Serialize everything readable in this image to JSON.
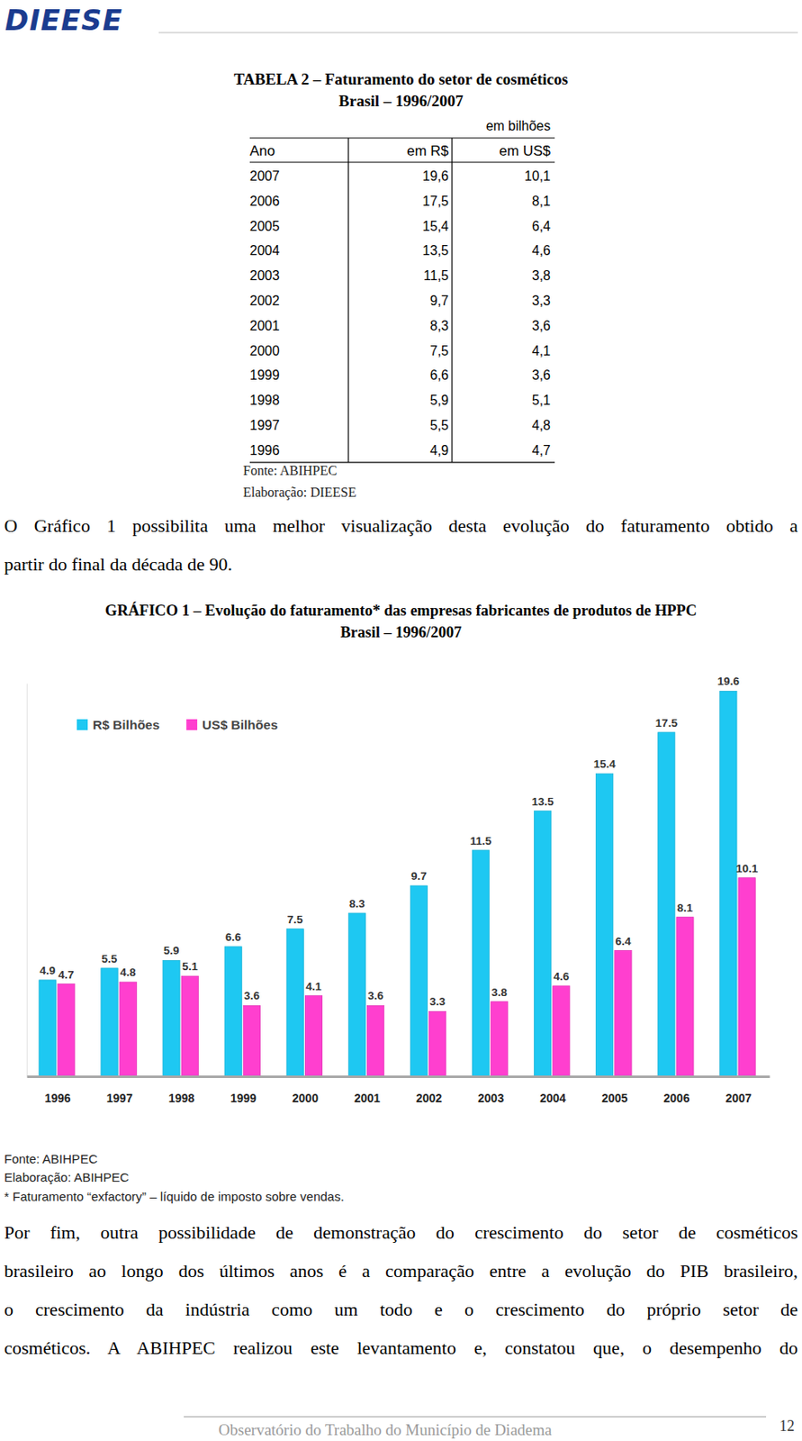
{
  "header": {
    "logo": "DIEESE"
  },
  "table": {
    "title": "TABELA 2 – Faturamento do setor de cosméticos",
    "subtitle": "Brasil – 1996/2007",
    "unit": "em bilhões",
    "columns": [
      "Ano",
      "em R$",
      "em US$"
    ],
    "rows": [
      [
        "2007",
        "19,6",
        "10,1"
      ],
      [
        "2006",
        "17,5",
        "8,1"
      ],
      [
        "2005",
        "15,4",
        "6,4"
      ],
      [
        "2004",
        "13,5",
        "4,6"
      ],
      [
        "2003",
        "11,5",
        "3,8"
      ],
      [
        "2002",
        "9,7",
        "3,3"
      ],
      [
        "2001",
        "8,3",
        "3,6"
      ],
      [
        "2000",
        "7,5",
        "4,1"
      ],
      [
        "1999",
        "6,6",
        "3,6"
      ],
      [
        "1998",
        "5,9",
        "5,1"
      ],
      [
        "1997",
        "5,5",
        "4,8"
      ],
      [
        "1996",
        "4,9",
        "4,7"
      ]
    ],
    "source": "Fonte: ABIHPEC",
    "credit": "Elaboração: DIEESE"
  },
  "paragraphs": [
    [
      "O Gráfico 1 possibilita uma melhor visualização desta evolução do faturamento obtido a",
      "partir do final da década de 90."
    ],
    [
      "Por fim, outra possibilidade de demonstração do crescimento do setor de cosméticos",
      "brasileiro ao longo dos últimos anos é a comparação entre a evolução do PIB brasileiro,",
      "o crescimento da indústria como um todo e o crescimento do próprio setor de",
      "cosméticos. A ABIHPEC realizou este levantamento e, constatou que, o desempenho do"
    ]
  ],
  "chart_data": {
    "type": "bar",
    "title": "GRÁFICO 1 – Evolução do faturamento* das empresas fabricantes de produtos de HPPC",
    "subtitle": "Brasil – 1996/2007",
    "categories": [
      "1996",
      "1997",
      "1998",
      "1999",
      "2000",
      "2001",
      "2002",
      "2003",
      "2004",
      "2005",
      "2006",
      "2007"
    ],
    "series": [
      {
        "name": "R$ Bilhões",
        "color": "#1ec8f2",
        "values": [
          4.9,
          5.5,
          5.9,
          6.6,
          7.5,
          8.3,
          9.7,
          11.5,
          13.5,
          15.4,
          17.5,
          19.6
        ]
      },
      {
        "name": "US$ Bilhões",
        "color": "#ff3fcf",
        "values": [
          4.7,
          4.8,
          5.1,
          3.6,
          4.1,
          3.6,
          3.3,
          3.8,
          4.6,
          6.4,
          8.1,
          10.1
        ]
      }
    ],
    "ylim": [
      0,
      20
    ],
    "yticks": [],
    "grid": false,
    "legend": "top-left",
    "data_labels": true,
    "tick_labels": "x"
  },
  "chart_notes": [
    "Fonte: ABIHPEC",
    "Elaboração: ABIHPEC",
    "* Faturamento “exfactory” – líquido de imposto sobre vendas."
  ],
  "footer": {
    "text": "Observatório do Trabalho do Município de Diadema",
    "page": "12"
  }
}
